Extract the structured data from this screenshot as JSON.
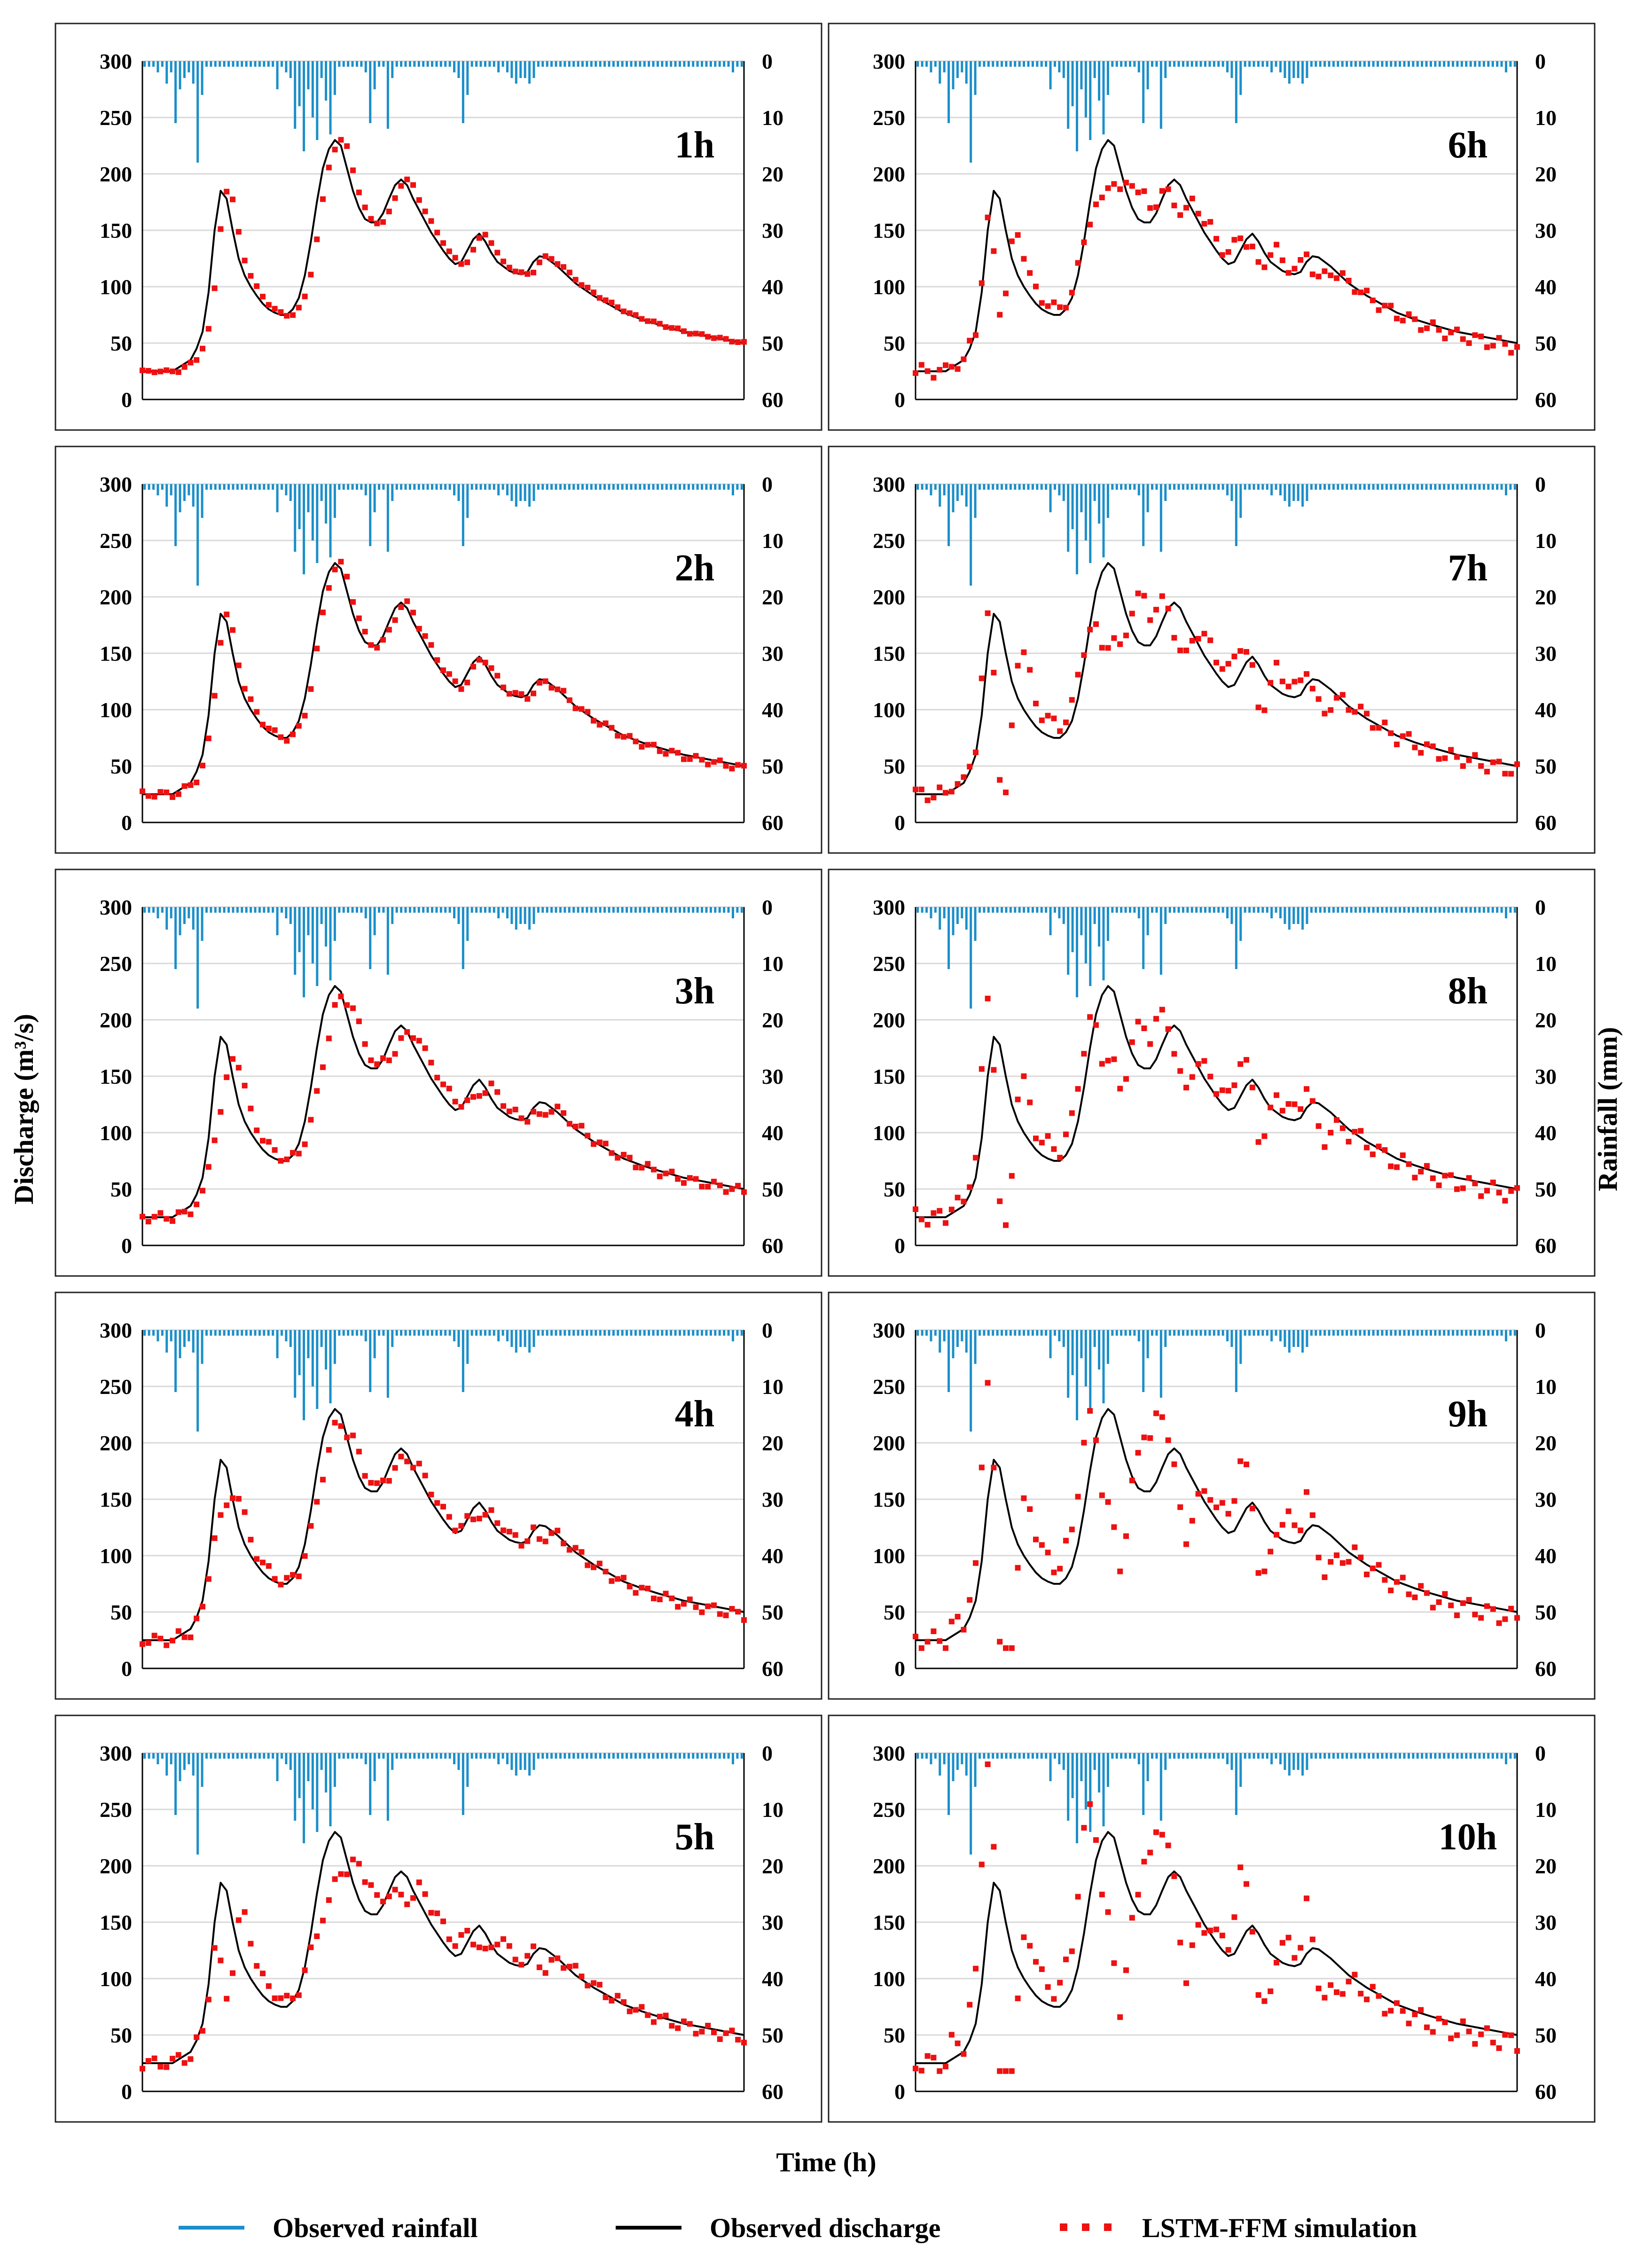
{
  "figure": {
    "y_label_left": "Discharge (m³/s)",
    "y_label_right": "Rainfall (mm)",
    "x_label": "Time (h)"
  },
  "legend": {
    "rainfall": "Observed rainfall",
    "observed": "Observed discharge",
    "simulated": "LSTM-FFM simulation"
  },
  "colors": {
    "rainfall": "#1b8fc9",
    "observed": "#000000",
    "simulated": "#ee1111"
  },
  "chart_data": {
    "type": "line",
    "panels": [
      "1h",
      "6h",
      "2h",
      "7h",
      "3h",
      "8h",
      "4h",
      "9h",
      "5h",
      "10h"
    ],
    "lead_hours": [
      1,
      6,
      2,
      7,
      3,
      8,
      4,
      9,
      5,
      10
    ],
    "x_range": [
      0,
      100
    ],
    "discharge_axis": {
      "range": [
        0,
        300
      ],
      "ticks": [
        "0",
        "50",
        "100",
        "150",
        "200",
        "250",
        "300"
      ]
    },
    "rainfall_axis": {
      "range": [
        0,
        60
      ],
      "inverted": true,
      "ticks": [
        "0",
        "10",
        "20",
        "30",
        "40",
        "50",
        "60"
      ]
    },
    "observed_discharge_keypoints": [
      [
        0,
        25
      ],
      [
        5,
        25
      ],
      [
        8,
        35
      ],
      [
        9,
        45
      ],
      [
        10,
        60
      ],
      [
        11,
        95
      ],
      [
        12,
        150
      ],
      [
        13,
        185
      ],
      [
        14,
        178
      ],
      [
        15,
        150
      ],
      [
        16,
        125
      ],
      [
        17,
        110
      ],
      [
        18,
        100
      ],
      [
        19,
        92
      ],
      [
        20,
        85
      ],
      [
        21,
        80
      ],
      [
        22,
        77
      ],
      [
        23,
        75
      ],
      [
        24,
        75
      ],
      [
        25,
        80
      ],
      [
        26,
        90
      ],
      [
        27,
        110
      ],
      [
        28,
        140
      ],
      [
        29,
        175
      ],
      [
        30,
        205
      ],
      [
        31,
        222
      ],
      [
        32,
        230
      ],
      [
        33,
        225
      ],
      [
        34,
        205
      ],
      [
        35,
        185
      ],
      [
        36,
        170
      ],
      [
        37,
        160
      ],
      [
        38,
        157
      ],
      [
        39,
        157
      ],
      [
        40,
        165
      ],
      [
        41,
        178
      ],
      [
        42,
        190
      ],
      [
        43,
        195
      ],
      [
        44,
        190
      ],
      [
        45,
        178
      ],
      [
        46,
        168
      ],
      [
        47,
        158
      ],
      [
        48,
        148
      ],
      [
        49,
        140
      ],
      [
        50,
        132
      ],
      [
        51,
        125
      ],
      [
        52,
        120
      ],
      [
        53,
        122
      ],
      [
        54,
        132
      ],
      [
        55,
        142
      ],
      [
        56,
        147
      ],
      [
        57,
        140
      ],
      [
        58,
        130
      ],
      [
        59,
        122
      ],
      [
        60,
        118
      ],
      [
        61,
        114
      ],
      [
        62,
        112
      ],
      [
        63,
        111
      ],
      [
        64,
        113
      ],
      [
        65,
        122
      ],
      [
        66,
        127
      ],
      [
        67,
        126
      ],
      [
        68,
        122
      ],
      [
        69,
        118
      ],
      [
        70,
        113
      ],
      [
        72,
        103
      ],
      [
        75,
        92
      ],
      [
        78,
        83
      ],
      [
        80,
        77
      ],
      [
        83,
        71
      ],
      [
        86,
        66
      ],
      [
        90,
        60
      ],
      [
        94,
        56
      ],
      [
        97,
        53
      ],
      [
        100,
        50
      ]
    ],
    "rainfall_mm": [
      1,
      1,
      1,
      2,
      1,
      4,
      2,
      11,
      5,
      3,
      2,
      4,
      18,
      6,
      1,
      1,
      1,
      1,
      1,
      1,
      1,
      1,
      1,
      1,
      1,
      1,
      1,
      1,
      1,
      1,
      5,
      1,
      2,
      3,
      12,
      8,
      16,
      5,
      10,
      14,
      3,
      7,
      13,
      6,
      1,
      1,
      1,
      1,
      1,
      1,
      2,
      11,
      5,
      1,
      1,
      12,
      3,
      1,
      1,
      1,
      1,
      1,
      1,
      1,
      1,
      1,
      1,
      1,
      1,
      1,
      2,
      3,
      11,
      6,
      1,
      1,
      1,
      1,
      1,
      1,
      2,
      1,
      2,
      3,
      4,
      3,
      3,
      4,
      3,
      1,
      1,
      1,
      1,
      1,
      1,
      1,
      1,
      1,
      1,
      1,
      1,
      1,
      1,
      1,
      1,
      1,
      1,
      1,
      1,
      1,
      1,
      1,
      1,
      1,
      1,
      1,
      1,
      1,
      1,
      1,
      1,
      1,
      1,
      1,
      1,
      1,
      1,
      1,
      1,
      1,
      1,
      1,
      1,
      2,
      1,
      1
    ],
    "simulation_parameters": {
      "1h": {
        "lag": 1,
        "amplitude": 0.04
      },
      "2h": {
        "lag": 2,
        "amplitude": 0.12
      },
      "3h": {
        "lag": 3,
        "amplitude": 0.16
      },
      "4h": {
        "lag": 4,
        "amplitude": 0.19
      },
      "5h": {
        "lag": 5,
        "amplitude": 0.21
      },
      "6h": {
        "lag": 6,
        "amplitude": 0.24
      },
      "7h": {
        "lag": 7,
        "amplitude": 0.27
      },
      "8h": {
        "lag": 8,
        "amplitude": 0.3
      },
      "9h": {
        "lag": 9,
        "amplitude": 0.33
      },
      "10h": {
        "lag": 10,
        "amplitude": 0.36
      }
    }
  }
}
